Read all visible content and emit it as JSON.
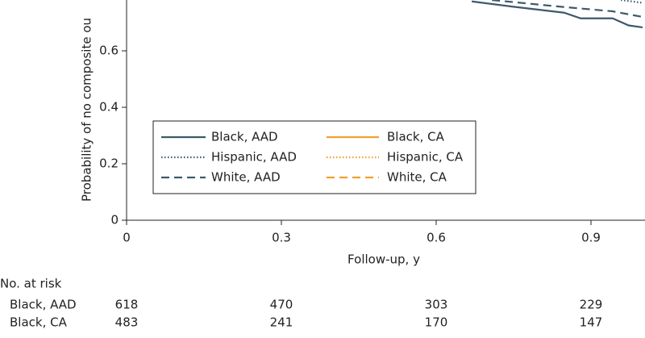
{
  "chart_data": {
    "type": "line",
    "ylabel": "Probability of no composite ou",
    "xlabel": "Follow-up, y",
    "xlim": [
      0,
      1.0
    ],
    "xticks": [
      0,
      0.3,
      0.6,
      0.9
    ],
    "ylim": [
      0,
      0.78
    ],
    "yticks": [
      0,
      0.2,
      0.4,
      0.6
    ],
    "series": [
      {
        "name": "Black, AAD",
        "color": "#3d5a6c",
        "dash": "solid",
        "x": [
          0.669,
          0.755,
          0.848,
          0.88,
          0.942,
          0.973,
          1.0
        ],
        "values": [
          0.775,
          0.755,
          0.735,
          0.715,
          0.715,
          0.69,
          0.683
        ]
      },
      {
        "name": "Black, CA",
        "color": "#f0a030",
        "dash": "solid",
        "x": [],
        "values": []
      },
      {
        "name": "Hispanic, AAD",
        "color": "#3d5a6c",
        "dash": "dotted",
        "x": [
          0.958,
          1.0
        ],
        "values": [
          0.78,
          0.77
        ]
      },
      {
        "name": "Hispanic, CA",
        "color": "#f0a030",
        "dash": "dotted",
        "x": [],
        "values": []
      },
      {
        "name": "White, AAD",
        "color": "#3d5a6c",
        "dash": "dashed",
        "x": [
          0.708,
          0.848,
          0.942,
          1.0
        ],
        "values": [
          0.78,
          0.755,
          0.74,
          0.72
        ]
      },
      {
        "name": "White, CA",
        "color": "#f0a030",
        "dash": "dashed",
        "x": [],
        "values": []
      }
    ],
    "risk_table": {
      "title": "No. at risk",
      "rows": [
        {
          "label": "Black, AAD",
          "values": [
            618,
            470,
            303,
            229
          ]
        },
        {
          "label": "Black, CA",
          "values": [
            483,
            241,
            170,
            147
          ]
        }
      ]
    }
  }
}
